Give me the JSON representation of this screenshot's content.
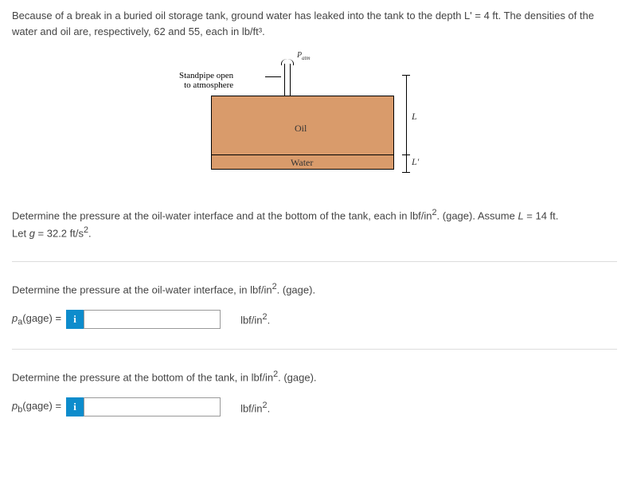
{
  "problem": {
    "statement": "Because of a break in a buried oil storage tank, ground water has leaked into the tank to the depth L' = 4 ft. The densities of the water and oil are, respectively, 62 and 55, each in lb/ft³."
  },
  "diagram": {
    "standpipe_label_line1": "Standpipe open",
    "standpipe_label_line2": "to atmosphere",
    "patm_label": "Patm",
    "oil_label": "Oil",
    "water_label": "Water",
    "L_label": "L",
    "Lprime_label": "L'",
    "oil_color": "#d99b6b",
    "border_color": "#000000"
  },
  "question": {
    "main": "Determine the pressure at the oil-water interface and at the bottom of the tank, each in lbf/in². (gage). Assume L = 14 ft. Let g = 32.2 ft/s².",
    "part_a_prompt": "Determine the pressure at the oil-water interface, in lbf/in². (gage).",
    "part_a_label": "pₐ(gage) =",
    "part_a_unit": "lbf/in².",
    "part_b_prompt": "Determine the pressure at the bottom of the tank, in lbf/in². (gage).",
    "part_b_label": "p_b(gage) =",
    "part_b_unit": "lbf/in².",
    "info_icon": "i"
  },
  "inputs": {
    "part_a_value": "",
    "part_b_value": ""
  }
}
